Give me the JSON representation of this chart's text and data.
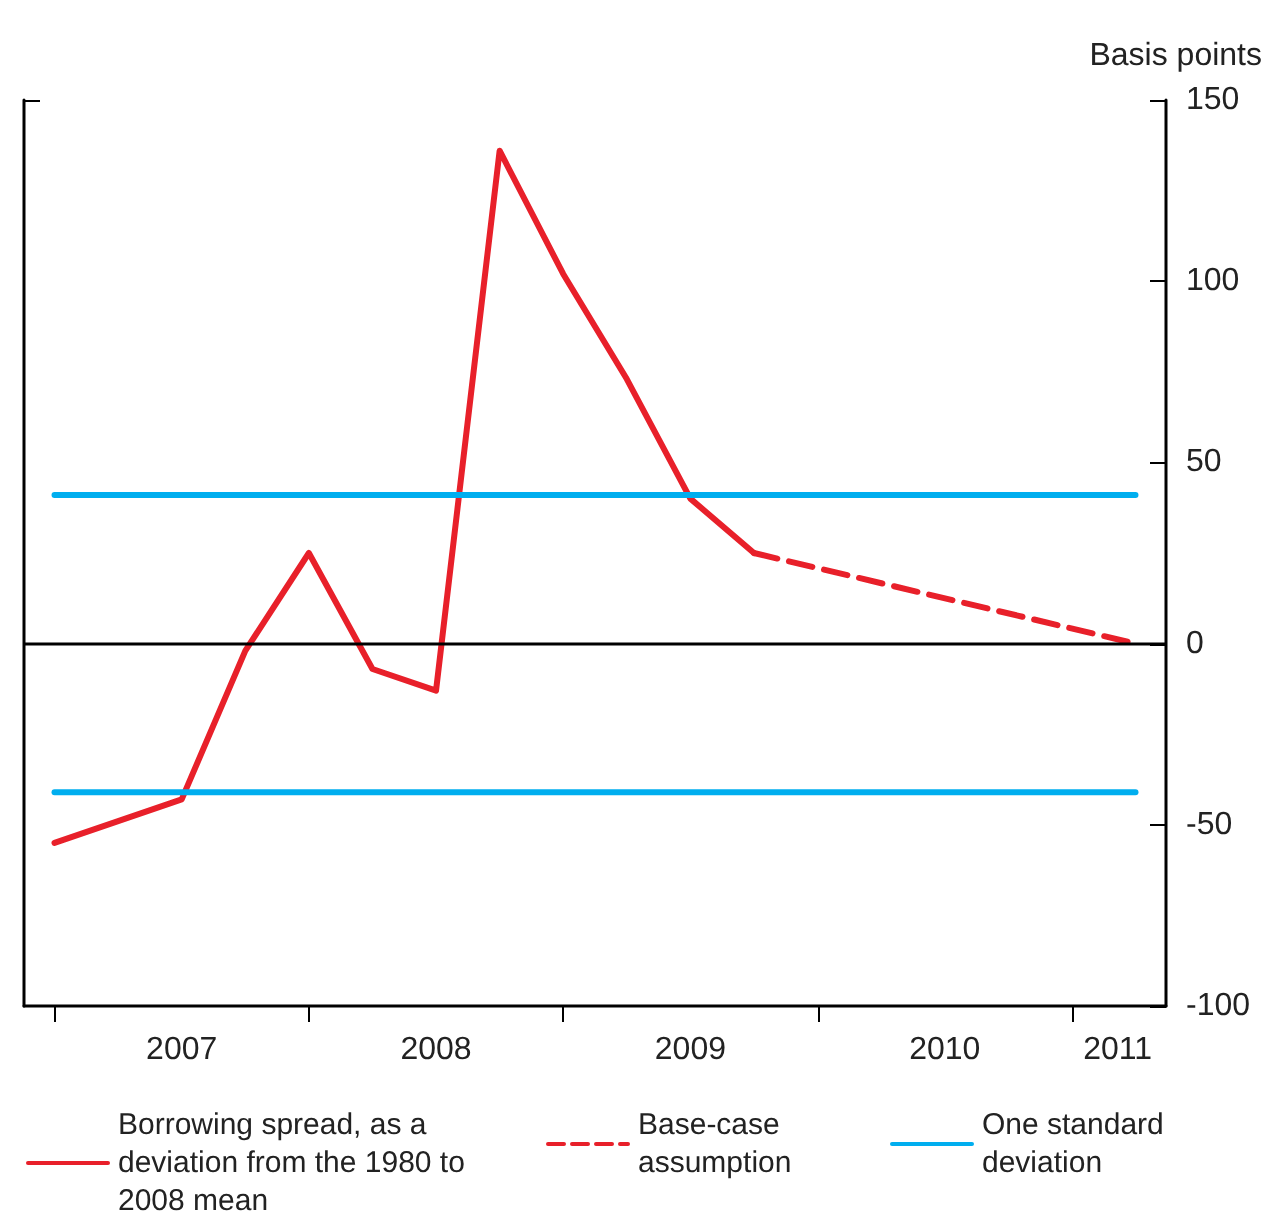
{
  "chart_data": {
    "type": "line",
    "ylabel": "Basis points",
    "xlim": [
      2006.88,
      2011.37
    ],
    "ylim": [
      -100,
      150
    ],
    "yticks": [
      -100,
      -50,
      0,
      50,
      100,
      150
    ],
    "xticks": [
      {
        "value": 2007,
        "label": null
      },
      {
        "value": 2008,
        "label": null
      },
      {
        "value": 2009,
        "label": null
      },
      {
        "value": 2010,
        "label": null
      },
      {
        "value": 2011,
        "label": null
      },
      {
        "value": 2007.5,
        "label": "2007"
      },
      {
        "value": 2008.5,
        "label": "2008"
      },
      {
        "value": 2009.5,
        "label": "2009"
      },
      {
        "value": 2010.5,
        "label": "2010"
      },
      {
        "value": 2011.18,
        "label": "2011"
      }
    ],
    "series": [
      {
        "name": "Borrowing spread, as a deviation from the 1980 to 2008 mean",
        "color": "#e8202a",
        "line_style": "solid",
        "x": [
          2007,
          2007.25,
          2007.5,
          2007.75,
          2008,
          2008.25,
          2008.5,
          2008.75,
          2009,
          2009.25,
          2009.5,
          2009.75
        ],
        "values": [
          -55,
          -49,
          -43,
          -2,
          25,
          -7,
          -13,
          136,
          102,
          73,
          40,
          25
        ]
      },
      {
        "name": "Base-case assumption",
        "color": "#e8202a",
        "line_style": "dashed",
        "x": [
          2009.75,
          2011.25
        ],
        "values": [
          25,
          0
        ]
      },
      {
        "name": "One standard deviation",
        "color": "#00aeef",
        "line_style": "solid",
        "x": [
          2007,
          2011.25
        ],
        "values": [
          41,
          41
        ]
      },
      {
        "color": "#00aeef",
        "line_style": "solid",
        "x": [
          2007,
          2011.25
        ],
        "values": [
          -41,
          -41
        ]
      }
    ],
    "ref_lines": [
      {
        "axis": "y",
        "value": 0,
        "color": "#000000"
      }
    ],
    "legend": "bottom",
    "grid": false,
    "marker": "none"
  }
}
